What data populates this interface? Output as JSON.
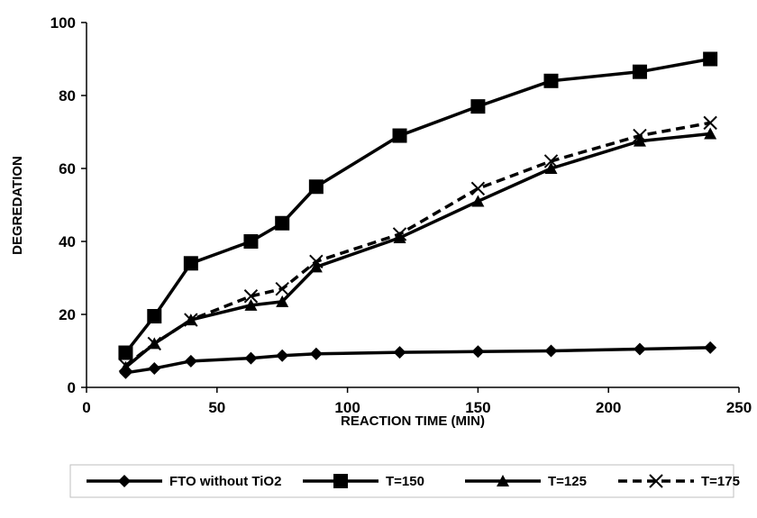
{
  "chart_data": {
    "type": "line",
    "title": "",
    "xlabel": "REACTION TIME (MIN)",
    "ylabel": "DEGREDATION",
    "xlim": [
      0,
      250
    ],
    "ylim": [
      0,
      100
    ],
    "xticks": [
      0,
      50,
      100,
      150,
      200,
      250
    ],
    "yticks": [
      0,
      20,
      40,
      60,
      80,
      100
    ],
    "grid": false,
    "legend_position": "bottom",
    "series": [
      {
        "name": "FTO without TiO2",
        "marker": "diamond",
        "dashed": false,
        "x": [
          15,
          26,
          40,
          63,
          75,
          88,
          120,
          150,
          178,
          212,
          239
        ],
        "y": [
          4,
          5.2,
          7.2,
          8,
          8.7,
          9.2,
          9.6,
          9.8,
          10,
          10.5,
          10.9
        ]
      },
      {
        "name": "T=150",
        "marker": "square",
        "dashed": false,
        "x": [
          15,
          26,
          40,
          63,
          75,
          88,
          120,
          150,
          178,
          212,
          239
        ],
        "y": [
          9.5,
          19.5,
          34,
          40,
          45,
          55,
          69,
          77,
          84,
          86.5,
          90
        ]
      },
      {
        "name": "T=125",
        "marker": "triangle",
        "dashed": false,
        "x": [
          15,
          26,
          40,
          63,
          75,
          88,
          120,
          150,
          178,
          212,
          239
        ],
        "y": [
          5.5,
          12,
          18.5,
          22.5,
          23.5,
          33,
          41,
          51,
          60,
          67.5,
          69.5
        ]
      },
      {
        "name": "T=175",
        "marker": "x",
        "dashed": true,
        "x": [
          15,
          26,
          40,
          63,
          75,
          88,
          120,
          150,
          178,
          212,
          239
        ],
        "y": [
          6,
          12,
          18.5,
          25,
          27,
          34.5,
          42,
          54.5,
          62,
          69,
          72.5
        ]
      }
    ]
  }
}
